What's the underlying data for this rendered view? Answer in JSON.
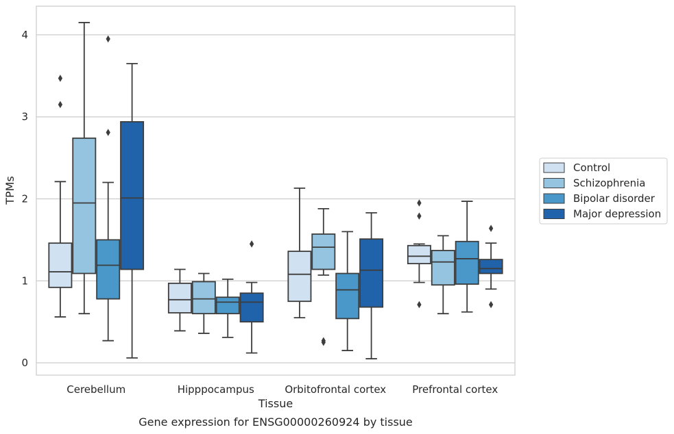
{
  "chart_data": {
    "type": "box",
    "title": "",
    "caption": "Gene expression for ENSG00000260924 by tissue",
    "xlabel": "Tissue",
    "ylabel": "TPMs",
    "ylim": [
      -0.15,
      4.35
    ],
    "yticks": [
      0,
      1,
      2,
      3,
      4
    ],
    "grid": "horizontal",
    "legend_position": "right",
    "categories": [
      "Cerebellum",
      "Hipppocampus",
      "Orbitofrontal cortex",
      "Prefrontal cortex"
    ],
    "series": [
      {
        "name": "Control",
        "color": "#d0e1f2",
        "boxes": [
          {
            "whislo": 0.56,
            "q1": 0.92,
            "med": 1.11,
            "q3": 1.46,
            "whishi": 2.21,
            "fliers": [
              3.47,
              3.15
            ]
          },
          {
            "whislo": 0.39,
            "q1": 0.61,
            "med": 0.77,
            "q3": 0.97,
            "whishi": 1.14,
            "fliers": []
          },
          {
            "whislo": 0.55,
            "q1": 0.75,
            "med": 1.08,
            "q3": 1.36,
            "whishi": 2.13,
            "fliers": []
          },
          {
            "whislo": 0.98,
            "q1": 1.21,
            "med": 1.3,
            "q3": 1.43,
            "whishi": 1.45,
            "fliers": [
              1.95,
              1.79,
              0.71
            ]
          }
        ]
      },
      {
        "name": "Schizophrenia",
        "color": "#94c4df",
        "boxes": [
          {
            "whislo": 0.6,
            "q1": 1.09,
            "med": 1.95,
            "q3": 2.74,
            "whishi": 4.15,
            "fliers": []
          },
          {
            "whislo": 0.36,
            "q1": 0.6,
            "med": 0.78,
            "q3": 0.99,
            "whishi": 1.09,
            "fliers": []
          },
          {
            "whislo": 1.07,
            "q1": 1.14,
            "med": 1.41,
            "q3": 1.57,
            "whishi": 1.88,
            "fliers": [
              0.27,
              0.25
            ]
          },
          {
            "whislo": 0.6,
            "q1": 0.95,
            "med": 1.23,
            "q3": 1.37,
            "whishi": 1.55,
            "fliers": []
          }
        ]
      },
      {
        "name": "Bipolar disorder",
        "color": "#4a98c9",
        "boxes": [
          {
            "whislo": 0.27,
            "q1": 0.78,
            "med": 1.19,
            "q3": 1.5,
            "whishi": 2.2,
            "fliers": [
              3.95,
              2.81
            ]
          },
          {
            "whislo": 0.31,
            "q1": 0.6,
            "med": 0.74,
            "q3": 0.8,
            "whishi": 1.02,
            "fliers": []
          },
          {
            "whislo": 0.15,
            "q1": 0.54,
            "med": 0.89,
            "q3": 1.09,
            "whishi": 1.6,
            "fliers": []
          },
          {
            "whislo": 0.62,
            "q1": 0.96,
            "med": 1.27,
            "q3": 1.48,
            "whishi": 1.97,
            "fliers": []
          }
        ]
      },
      {
        "name": "Major depression",
        "color": "#2163aa",
        "boxes": [
          {
            "whislo": 0.06,
            "q1": 1.14,
            "med": 2.01,
            "q3": 2.94,
            "whishi": 3.65,
            "fliers": []
          },
          {
            "whislo": 0.12,
            "q1": 0.5,
            "med": 0.74,
            "q3": 0.85,
            "whishi": 0.98,
            "fliers": [
              1.45
            ]
          },
          {
            "whislo": 0.05,
            "q1": 0.68,
            "med": 1.13,
            "q3": 1.51,
            "whishi": 1.83,
            "fliers": []
          },
          {
            "whislo": 0.9,
            "q1": 1.09,
            "med": 1.15,
            "q3": 1.26,
            "whishi": 1.46,
            "fliers": [
              1.64,
              0.71
            ]
          }
        ]
      }
    ]
  }
}
